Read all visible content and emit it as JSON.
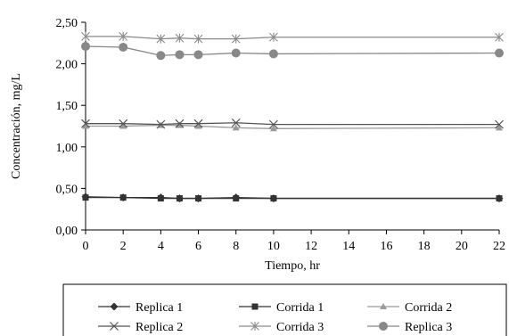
{
  "chart_data": {
    "type": "line",
    "xlabel": "Tiempo, hr",
    "ylabel": "Concentración, mg/L",
    "xlim": [
      0,
      22
    ],
    "ylim": [
      0,
      2.5
    ],
    "x_ticks": [
      "0",
      "2",
      "4",
      "6",
      "8",
      "10",
      "12",
      "14",
      "16",
      "18",
      "20",
      "22"
    ],
    "y_ticks": [
      "0,00",
      "0,50",
      "1,00",
      "1,50",
      "2,00",
      "2,50"
    ],
    "grid": false,
    "legend_position": "bottom",
    "series": [
      {
        "name": "Replica 1",
        "marker": "diamond",
        "color": "#333333",
        "x": [
          0,
          2,
          4,
          5,
          6,
          8,
          10,
          22
        ],
        "y": [
          0.4,
          0.39,
          0.39,
          0.38,
          0.38,
          0.39,
          0.38,
          0.38
        ]
      },
      {
        "name": "Corrida 1",
        "marker": "square",
        "color": "#333333",
        "x": [
          0,
          2,
          4,
          5,
          6,
          8,
          10,
          22
        ],
        "y": [
          0.39,
          0.39,
          0.38,
          0.38,
          0.38,
          0.38,
          0.38,
          0.38
        ]
      },
      {
        "name": "Corrida 2",
        "marker": "triangle",
        "color": "#9a9a9a",
        "x": [
          0,
          2,
          4,
          5,
          6,
          8,
          10,
          22
        ],
        "y": [
          1.25,
          1.25,
          1.26,
          1.26,
          1.25,
          1.23,
          1.22,
          1.23
        ]
      },
      {
        "name": "Replica 2",
        "marker": "x",
        "color": "#555555",
        "x": [
          0,
          2,
          4,
          5,
          6,
          8,
          10,
          22
        ],
        "y": [
          1.28,
          1.28,
          1.27,
          1.28,
          1.28,
          1.29,
          1.27,
          1.27
        ]
      },
      {
        "name": "Corrida 3",
        "marker": "star",
        "color": "#8a8a8a",
        "x": [
          0,
          2,
          4,
          5,
          6,
          8,
          10,
          22
        ],
        "y": [
          2.33,
          2.33,
          2.3,
          2.31,
          2.3,
          2.3,
          2.32,
          2.32
        ]
      },
      {
        "name": "Replica 3",
        "marker": "circle",
        "color": "#888888",
        "x": [
          0,
          2,
          4,
          5,
          6,
          8,
          10,
          22
        ],
        "y": [
          2.21,
          2.2,
          2.1,
          2.11,
          2.11,
          2.13,
          2.12,
          2.13
        ]
      }
    ]
  }
}
